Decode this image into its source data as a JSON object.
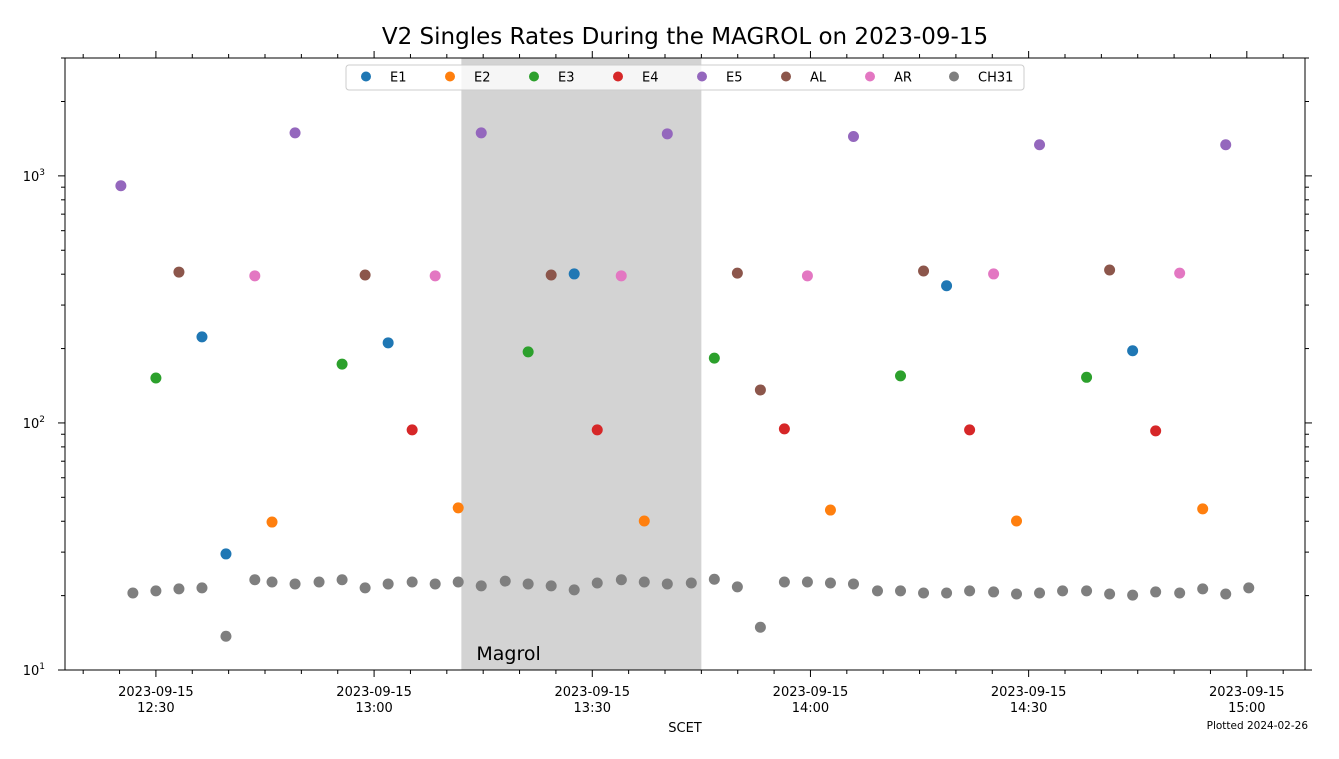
{
  "chart_data": {
    "type": "scatter",
    "title": "V2 Singles Rates During the MAGROL on 2023-09-15",
    "xlabel": "SCET",
    "ylabel": "",
    "yscale": "log",
    "ylim": [
      10,
      3000
    ],
    "xlim": [
      "2023-09-15T12:17:30",
      "2023-09-15T15:08:00"
    ],
    "grid": false,
    "legend": {
      "placement": "top-center",
      "columns": 8
    },
    "x_ticks": [
      {
        "time": "2023-09-15T12:30:00",
        "line1": "2023-09-15",
        "line2": "12:30"
      },
      {
        "time": "2023-09-15T13:00:00",
        "line1": "2023-09-15",
        "line2": "13:00"
      },
      {
        "time": "2023-09-15T13:30:00",
        "line1": "2023-09-15",
        "line2": "13:30"
      },
      {
        "time": "2023-09-15T14:00:00",
        "line1": "2023-09-15",
        "line2": "14:00"
      },
      {
        "time": "2023-09-15T14:30:00",
        "line1": "2023-09-15",
        "line2": "14:30"
      },
      {
        "time": "2023-09-15T15:00:00",
        "line1": "2023-09-15",
        "line2": "15:00"
      }
    ],
    "x_minor_tick_interval_minutes": 5,
    "y_ticks": [
      {
        "value": 10,
        "base": "10",
        "exp": "1"
      },
      {
        "value": 100,
        "base": "10",
        "exp": "2"
      },
      {
        "value": 1000,
        "base": "10",
        "exp": "3"
      }
    ],
    "shaded_spans": [
      {
        "label": "Magrol",
        "start": "2023-09-15T13:12:00",
        "end": "2023-09-15T13:45:00",
        "color": "#d3d3d3"
      }
    ],
    "annotations": [
      {
        "text": "Plotted 2024-02-26",
        "placement": "bottom-right"
      }
    ],
    "series": [
      {
        "name": "E1",
        "color": "#1f77b4",
        "points": [
          [
            "12:36:20",
            223
          ],
          [
            "12:39:38",
            29.5
          ],
          [
            "13:01:56",
            211
          ],
          [
            "13:27:31",
            401
          ],
          [
            "14:18:43",
            359
          ],
          [
            "14:44:18",
            196
          ]
        ]
      },
      {
        "name": "E2",
        "color": "#ff7f0e",
        "points": [
          [
            "12:45:58",
            39.7
          ],
          [
            "13:11:34",
            45.3
          ],
          [
            "13:37:09",
            40.1
          ],
          [
            "14:02:45",
            44.4
          ],
          [
            "14:28:20",
            40.1
          ],
          [
            "14:53:56",
            44.9
          ]
        ]
      },
      {
        "name": "E3",
        "color": "#2ca02c",
        "points": [
          [
            "12:30:00",
            152
          ],
          [
            "12:55:36",
            173
          ],
          [
            "13:21:11",
            194
          ],
          [
            "13:46:47",
            183
          ],
          [
            "14:12:23",
            155
          ],
          [
            "14:37:58",
            153
          ]
        ]
      },
      {
        "name": "E4",
        "color": "#d62728",
        "points": [
          [
            "13:05:14",
            93.7
          ],
          [
            "13:30:41",
            93.7
          ],
          [
            "13:56:25",
            94.6
          ],
          [
            "14:21:53",
            93.7
          ],
          [
            "14:47:28",
            92.9
          ]
        ]
      },
      {
        "name": "E5",
        "color": "#9467bd",
        "points": [
          [
            "12:25:11",
            912
          ],
          [
            "12:49:08",
            1493
          ],
          [
            "13:14:44",
            1493
          ],
          [
            "13:40:19",
            1480
          ],
          [
            "14:05:55",
            1443
          ],
          [
            "14:31:30",
            1336
          ],
          [
            "14:57:06",
            1336
          ]
        ]
      },
      {
        "name": "AL",
        "color": "#8c564b",
        "points": [
          [
            "12:33:10",
            408
          ],
          [
            "12:58:46",
            397
          ],
          [
            "13:24:21",
            397
          ],
          [
            "13:49:57",
            404
          ],
          [
            "13:53:07",
            136
          ],
          [
            "14:15:33",
            412
          ],
          [
            "14:41:08",
            416
          ]
        ]
      },
      {
        "name": "AR",
        "color": "#e377c2",
        "points": [
          [
            "12:43:36",
            394
          ],
          [
            "13:08:24",
            394
          ],
          [
            "13:33:59",
            394
          ],
          [
            "13:59:35",
            394
          ],
          [
            "14:25:11",
            401
          ],
          [
            "14:50:46",
            404
          ]
        ]
      },
      {
        "name": "CH31",
        "color": "#7f7f7f",
        "points": [
          [
            "12:26:50",
            20.5
          ],
          [
            "12:30:00",
            20.9
          ],
          [
            "12:33:10",
            21.3
          ],
          [
            "12:36:20",
            21.5
          ],
          [
            "12:39:38",
            13.7
          ],
          [
            "12:43:36",
            23.2
          ],
          [
            "12:45:58",
            22.7
          ],
          [
            "12:49:08",
            22.3
          ],
          [
            "12:52:26",
            22.7
          ],
          [
            "12:55:36",
            23.2
          ],
          [
            "12:58:46",
            21.5
          ],
          [
            "13:01:56",
            22.3
          ],
          [
            "13:05:14",
            22.7
          ],
          [
            "13:08:24",
            22.3
          ],
          [
            "13:11:34",
            22.7
          ],
          [
            "13:14:44",
            21.9
          ],
          [
            "13:18:02",
            22.9
          ],
          [
            "13:21:11",
            22.3
          ],
          [
            "13:24:21",
            21.9
          ],
          [
            "13:27:31",
            21.1
          ],
          [
            "13:30:41",
            22.5
          ],
          [
            "13:34:00",
            23.2
          ],
          [
            "13:37:09",
            22.7
          ],
          [
            "13:40:19",
            22.3
          ],
          [
            "13:43:37",
            22.5
          ],
          [
            "13:46:47",
            23.3
          ],
          [
            "13:49:57",
            21.7
          ],
          [
            "13:53:07",
            14.9
          ],
          [
            "13:56:25",
            22.7
          ],
          [
            "13:59:35",
            22.7
          ],
          [
            "14:02:45",
            22.5
          ],
          [
            "14:05:55",
            22.3
          ],
          [
            "14:09:13",
            20.9
          ],
          [
            "14:12:23",
            20.9
          ],
          [
            "14:15:33",
            20.5
          ],
          [
            "14:18:43",
            20.5
          ],
          [
            "14:21:53",
            20.9
          ],
          [
            "14:25:11",
            20.7
          ],
          [
            "14:28:20",
            20.3
          ],
          [
            "14:31:30",
            20.5
          ],
          [
            "14:34:40",
            20.9
          ],
          [
            "14:37:58",
            20.9
          ],
          [
            "14:41:08",
            20.3
          ],
          [
            "14:44:18",
            20.1
          ],
          [
            "14:47:28",
            20.7
          ],
          [
            "14:50:46",
            20.5
          ],
          [
            "14:53:56",
            21.3
          ],
          [
            "14:57:06",
            20.3
          ],
          [
            "15:00:16",
            21.5
          ]
        ]
      }
    ]
  }
}
